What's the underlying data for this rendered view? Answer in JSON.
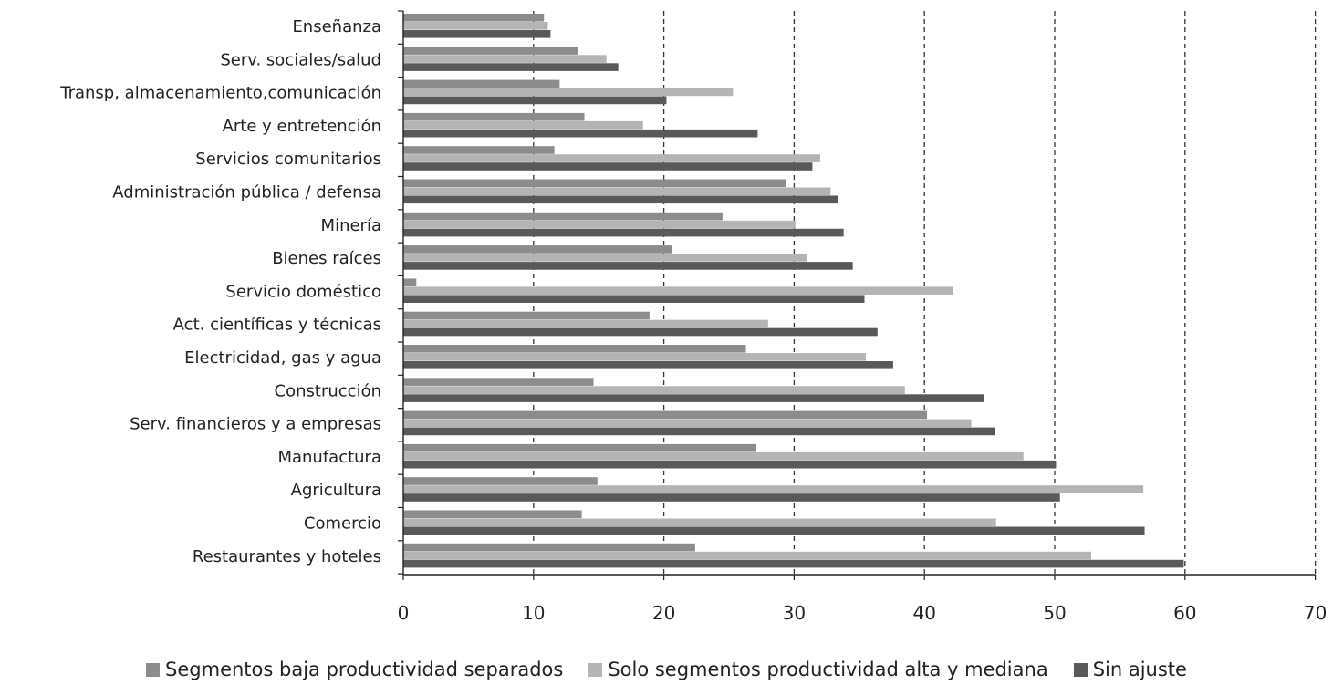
{
  "chart_data": {
    "type": "bar",
    "orientation": "horizontal",
    "categories": [
      "Enseñanza",
      "Serv. sociales/salud",
      "Transp, almacenamiento,comunicación",
      "Arte y entretención",
      "Servicios comunitarios",
      "Administración pública / defensa",
      "Minería",
      "Bienes raíces",
      "Servicio doméstico",
      "Act. científicas y técnicas",
      "Electricidad, gas y agua",
      "Construcción",
      "Serv. financieros y a empresas",
      "Manufactura",
      "Agricultura",
      "Comercio",
      "Restaurantes y hoteles"
    ],
    "series": [
      {
        "name": "Segmentos baja productividad separados",
        "color": "#8c8c8c",
        "values": [
          10.8,
          13.4,
          12.0,
          13.9,
          11.6,
          29.4,
          24.5,
          20.6,
          1.0,
          18.9,
          26.3,
          14.6,
          40.2,
          27.1,
          14.9,
          13.7,
          22.4
        ]
      },
      {
        "name": "Solo segmentos productividad alta y mediana",
        "color": "#b4b4b4",
        "values": [
          11.1,
          15.6,
          25.3,
          18.4,
          32.0,
          32.8,
          30.1,
          31.0,
          42.2,
          28.0,
          35.5,
          38.5,
          43.6,
          47.6,
          56.8,
          45.5,
          52.8
        ]
      },
      {
        "name": "Sin ajuste",
        "color": "#595959",
        "values": [
          11.3,
          16.5,
          20.2,
          27.2,
          31.4,
          33.4,
          33.8,
          34.5,
          35.4,
          36.4,
          37.6,
          44.6,
          45.4,
          50.1,
          50.4,
          56.9,
          59.9
        ]
      }
    ],
    "x_ticks": [
      "0",
      "10",
      "20",
      "30",
      "40",
      "50",
      "60",
      "70"
    ],
    "xlim": [
      0,
      70
    ],
    "grid": "vertical dashed",
    "legend_position": "bottom"
  }
}
